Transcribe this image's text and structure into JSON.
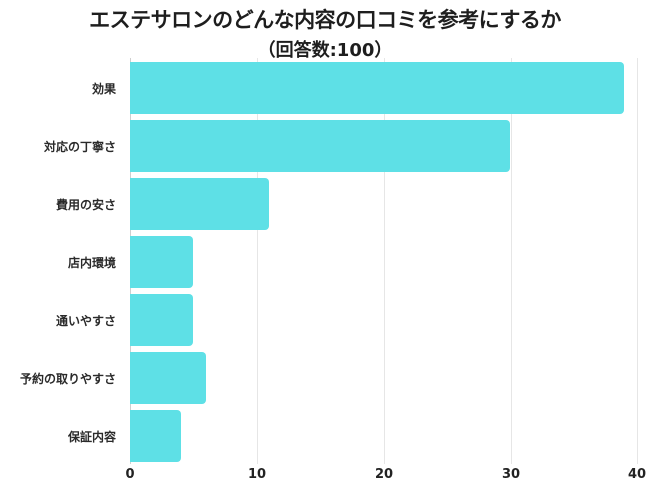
{
  "title": "エステサロンのどんな内容の口コミを参考にするか",
  "subtitle": "（回答数:100）",
  "colors": {
    "bar": "#5ee0e6",
    "grid": "#e6e6e6",
    "text": "#1e1e1e"
  },
  "chart_data": {
    "type": "bar",
    "orientation": "horizontal",
    "title": "エステサロンのどんな内容の口コミを参考にするか",
    "subtitle": "（回答数:100）",
    "categories": [
      "効果",
      "対応の丁寧さ",
      "費用の安さ",
      "店内環境",
      "通いやすさ",
      "予約の取りやすさ",
      "保証内容"
    ],
    "values": [
      39,
      30,
      11,
      5,
      5,
      6,
      4
    ],
    "xlabel": "",
    "ylabel": "",
    "xlim": [
      0,
      40
    ],
    "xticks": [
      "0",
      "10",
      "20",
      "30",
      "40"
    ],
    "grid": true,
    "legend": null
  }
}
